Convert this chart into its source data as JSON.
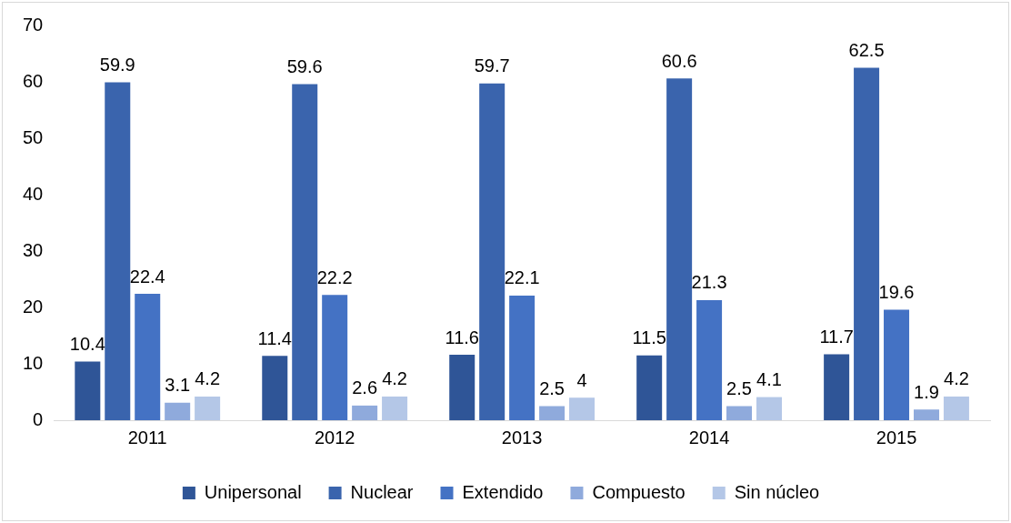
{
  "chart_data": {
    "type": "bar",
    "categories": [
      "2011",
      "2012",
      "2013",
      "2014",
      "2015"
    ],
    "series": [
      {
        "name": "Unipersonal",
        "color": "#2f5597",
        "values": [
          10.4,
          11.4,
          11.6,
          11.5,
          11.7
        ]
      },
      {
        "name": "Nuclear",
        "color": "#3a64ad",
        "values": [
          59.9,
          59.6,
          59.7,
          60.6,
          62.5
        ]
      },
      {
        "name": "Extendido",
        "color": "#4472c4",
        "values": [
          22.4,
          22.2,
          22.1,
          21.3,
          19.6
        ]
      },
      {
        "name": "Compuesto",
        "color": "#8faadc",
        "values": [
          3.1,
          2.6,
          2.5,
          2.5,
          1.9
        ]
      },
      {
        "name": "Sin núcleo",
        "color": "#b4c7e7",
        "values": [
          4.2,
          4.2,
          4,
          4.1,
          4.2
        ]
      }
    ],
    "ylim": [
      0,
      70
    ],
    "yticks": [
      0,
      10,
      20,
      30,
      40,
      50,
      60,
      70
    ],
    "grid": false,
    "legend": "bottom",
    "data_labels": true
  }
}
